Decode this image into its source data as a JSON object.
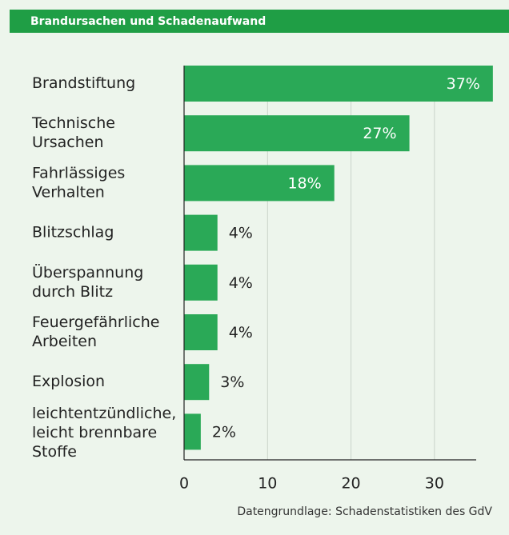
{
  "chart_data": {
    "type": "barh",
    "title": "Brandursachen und Schadenaufwand",
    "categories": [
      [
        "Brandstiftung"
      ],
      [
        "Technische",
        "Ursachen"
      ],
      [
        "Fahrlässiges",
        "Verhalten"
      ],
      [
        "Blitzschlag"
      ],
      [
        "Überspannung",
        "durch Blitz"
      ],
      [
        "Feuergefährliche",
        "Arbeiten"
      ],
      [
        "Explosion"
      ],
      [
        "leichtentzündliche,",
        "leicht brennbare",
        "Stoffe"
      ]
    ],
    "values": [
      37,
      27,
      18,
      4,
      4,
      4,
      3,
      2
    ],
    "value_labels": [
      "37%",
      "27%",
      "18%",
      "4%",
      "4%",
      "4%",
      "3%",
      "2%"
    ],
    "color": "#2aa957",
    "xlim": [
      0,
      35
    ],
    "xticks": [
      0,
      10,
      20,
      30
    ],
    "grid": true,
    "source": "Datengrundlage: Schadenstatistiken des GdV"
  }
}
